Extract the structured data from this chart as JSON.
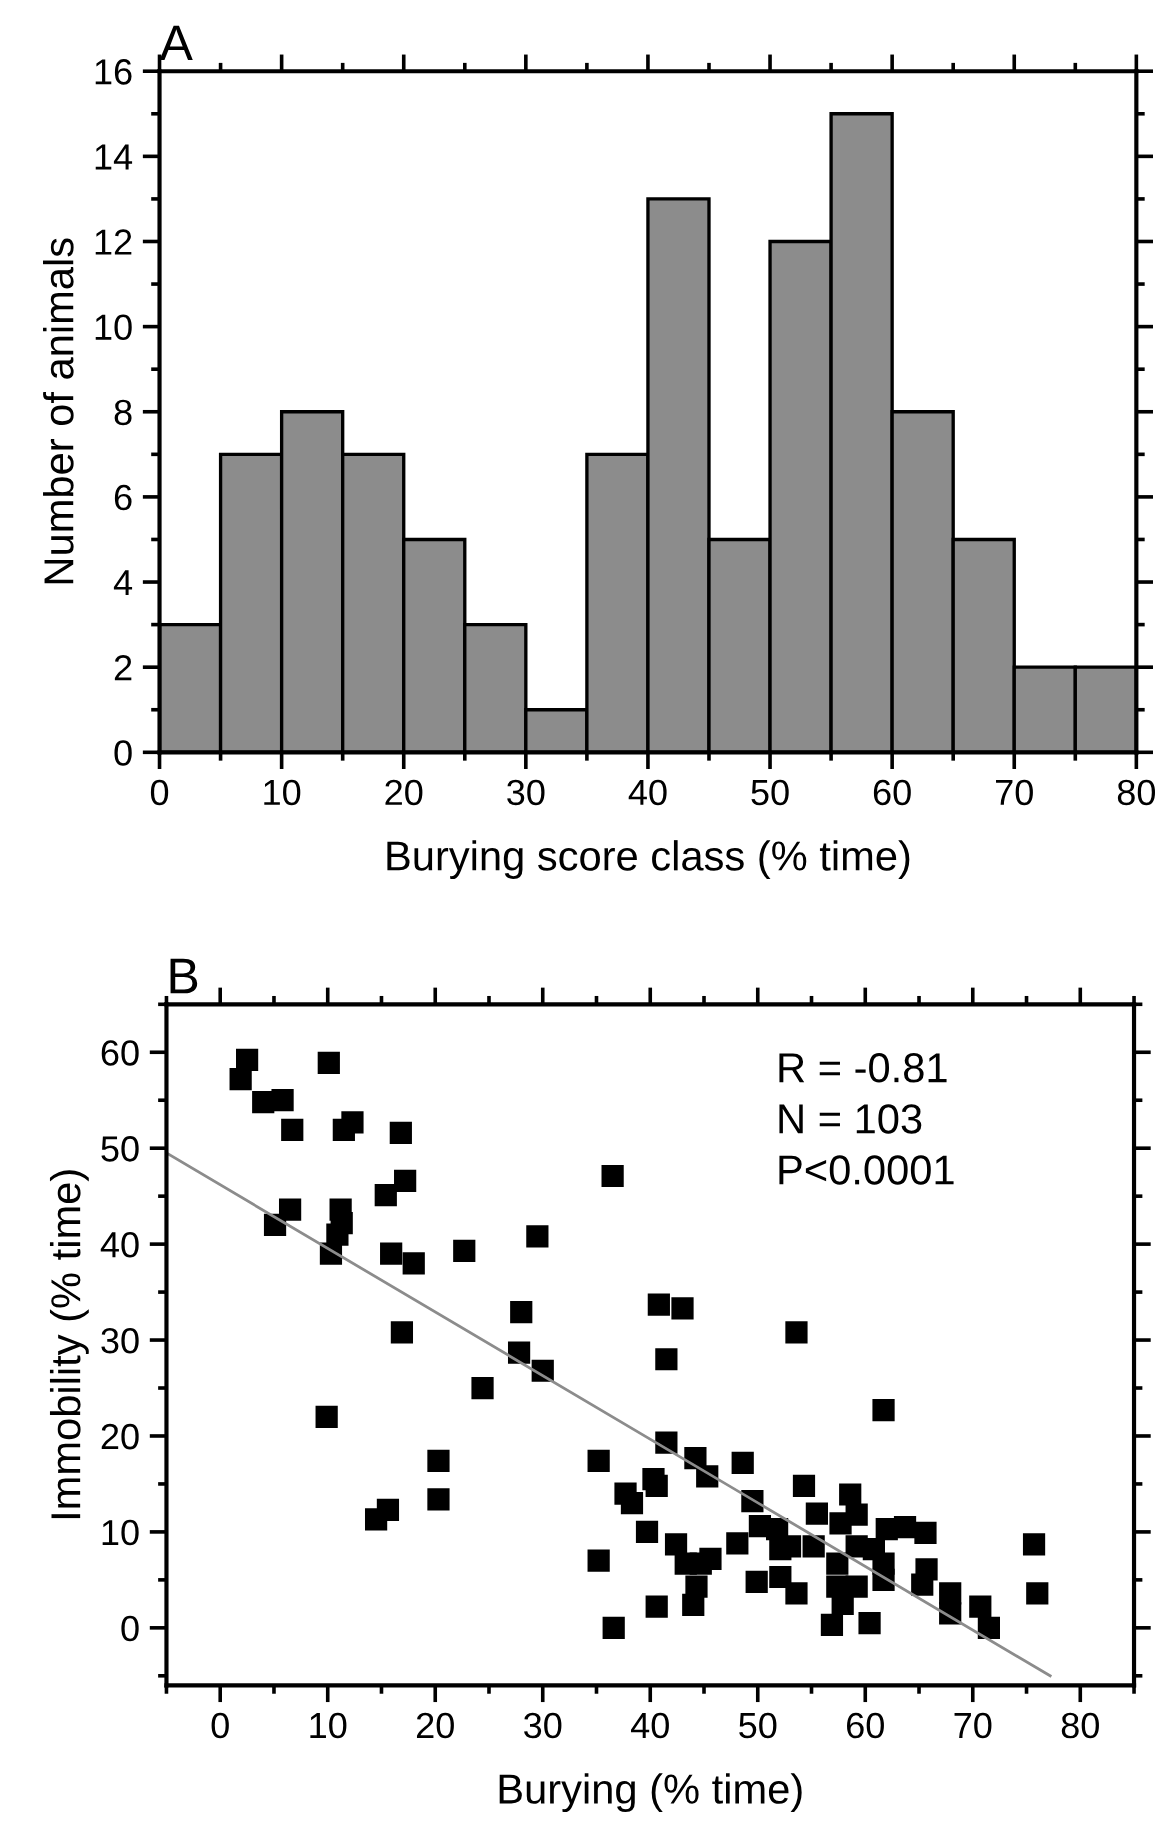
{
  "chart_data": [
    {
      "type": "histogram",
      "title": "A",
      "xlabel": "Burying score class (% time)",
      "ylabel": "Number of animals",
      "bins": [
        0,
        5,
        10,
        15,
        20,
        25,
        30,
        35,
        40,
        45,
        50,
        55,
        60,
        65,
        70,
        75,
        80
      ],
      "values": [
        3,
        7,
        8,
        7,
        5,
        3,
        1,
        7,
        13,
        5,
        12,
        15,
        8,
        5,
        2,
        2
      ],
      "color": "#8c8c8c",
      "xlim": [
        0,
        80
      ],
      "ylim": [
        0,
        16
      ],
      "xticks": [
        0,
        10,
        20,
        30,
        40,
        50,
        60,
        70,
        80
      ],
      "yticks": [
        0,
        2,
        4,
        6,
        8,
        10,
        12,
        14,
        16
      ],
      "grid": false
    },
    {
      "type": "scatter",
      "title": "B",
      "xlabel": "Burying (% time)",
      "ylabel": "Immobility (% time)",
      "xlim": [
        -5,
        85
      ],
      "ylim": [
        -6,
        65
      ],
      "xticks": [
        0,
        10,
        20,
        30,
        40,
        50,
        60,
        70,
        80
      ],
      "yticks": [
        0,
        10,
        20,
        30,
        40,
        50,
        60
      ],
      "grid": false,
      "marker": "square",
      "annotations": [
        "R = -0.81",
        "N = 103",
        "P<0.0001"
      ],
      "series": [
        {
          "color": "#000000",
          "x": [
            2.5,
            1.9,
            4.0,
            5.8,
            6.7,
            10.1,
            11.5,
            12.3,
            16.8,
            17.2,
            15.4,
            5.1,
            6.5,
            11.2,
            11.3,
            10.9,
            10.3,
            15.9,
            18.0,
            22.7,
            29.5,
            36.5,
            16.9,
            28.0,
            27.8,
            30.0,
            24.4,
            9.9,
            20.3,
            20.3,
            14.5,
            15.6,
            35.2,
            35.2,
            36.6,
            37.7,
            38.3,
            40.8,
            43.0,
            41.5,
            53.6,
            61.7,
            41.5,
            44.2,
            45.3,
            48.6,
            40.3,
            40.6,
            39.7,
            42.4,
            43.3,
            44.7,
            45.6,
            44.3,
            44.0,
            40.6,
            48.1,
            49.5,
            50.2,
            51.8,
            49.9,
            52.1,
            53.6,
            52.1,
            53.0,
            54.3,
            55.5,
            55.2,
            57.4,
            57.7,
            58.6,
            59.2,
            59.2,
            60.8,
            61.7,
            62.0,
            63.7,
            65.6,
            61.7,
            65.7,
            65.3,
            57.4,
            59.2,
            57.9,
            60.4,
            56.9,
            67.9,
            67.9,
            70.7,
            71.5,
            75.7,
            76.0
          ],
          "values": [
            59.2,
            57.2,
            54.8,
            55.0,
            51.9,
            58.9,
            51.9,
            52.7,
            51.6,
            46.6,
            45.1,
            42.0,
            43.6,
            43.6,
            42.2,
            41.0,
            39.0,
            39.0,
            38.0,
            39.3,
            40.8,
            47.1,
            30.8,
            32.9,
            28.7,
            26.8,
            25.0,
            22.0,
            17.4,
            13.4,
            11.3,
            12.3,
            17.4,
            7.0,
            0,
            14.0,
            13.0,
            33.7,
            33.3,
            28.0,
            30.8,
            22.7,
            19.3,
            17.7,
            15.8,
            17.2,
            15.5,
            14.8,
            10.0,
            8.7,
            6.7,
            6.7,
            7.2,
            4.3,
            2.4,
            2.2,
            8.8,
            13.2,
            10.6,
            10.3,
            4.8,
            5.3,
            3.6,
            8.2,
            8.5,
            14.8,
            11.9,
            8.5,
            6.7,
            10.9,
            13.9,
            11.8,
            8.5,
            8.2,
            6.7,
            10.3,
            10.5,
            9.9,
            5.0,
            6.1,
            4.5,
            4.3,
            4.3,
            2.5,
            0.5,
            0.3,
            3.6,
            1.5,
            2.2,
            0,
            8.7,
            3.6
          ]
        },
        {
          "type": "line",
          "color": "#8c8c8c",
          "x": [
            -5,
            77.2
          ],
          "values": [
            49.5,
            -5
          ],
          "marker": "none"
        }
      ]
    }
  ]
}
